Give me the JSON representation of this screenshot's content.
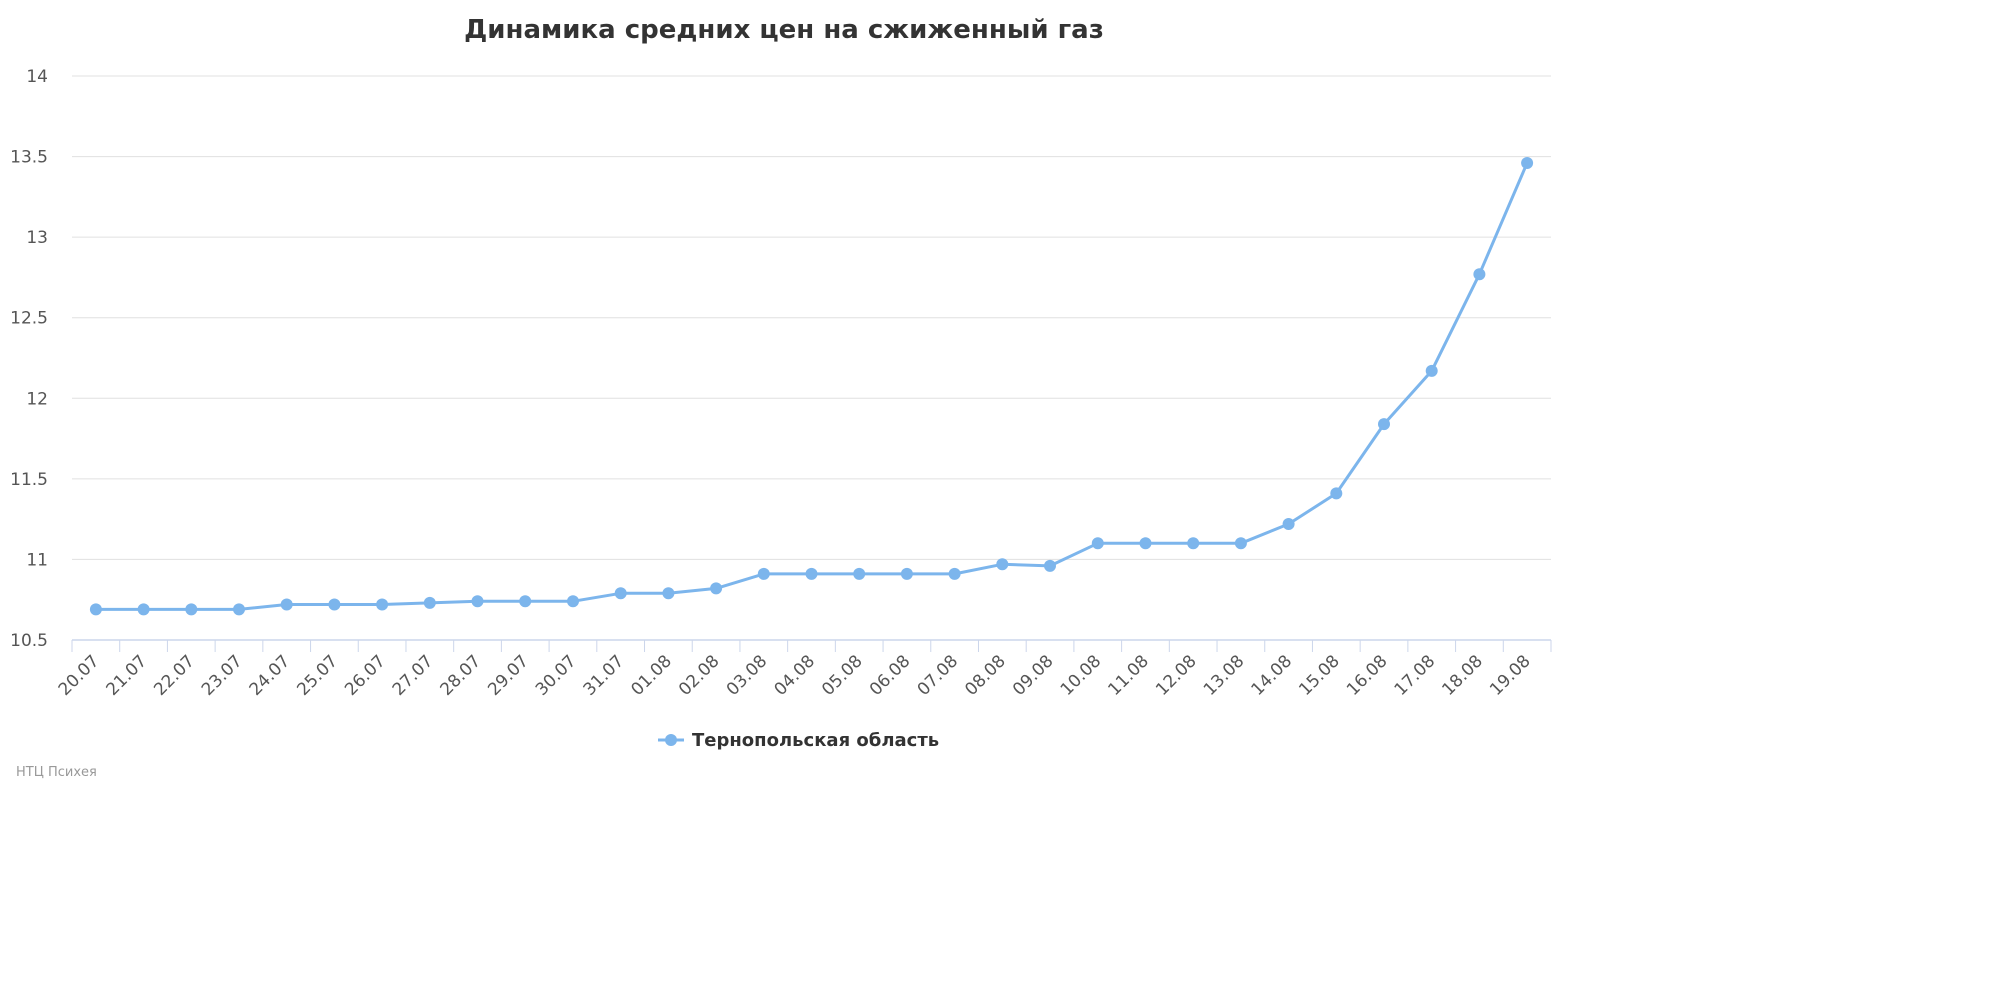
{
  "chart_data": {
    "type": "line",
    "title": "Динамика средних цен на сжиженный газ",
    "xlabel": "",
    "ylabel": "",
    "ylim": [
      10.5,
      14
    ],
    "y_ticks": [
      "10.5",
      "11",
      "11.5",
      "12",
      "12.5",
      "13",
      "13.5",
      "14"
    ],
    "grid": true,
    "legend": "bottom-center",
    "categories": [
      "20.07",
      "21.07",
      "22.07",
      "23.07",
      "24.07",
      "25.07",
      "26.07",
      "27.07",
      "28.07",
      "29.07",
      "30.07",
      "31.07",
      "01.08",
      "02.08",
      "03.08",
      "04.08",
      "05.08",
      "06.08",
      "07.08",
      "08.08",
      "09.08",
      "10.08",
      "11.08",
      "12.08",
      "13.08",
      "14.08",
      "15.08",
      "16.08",
      "17.08",
      "18.08",
      "19.08"
    ],
    "series": [
      {
        "name": "Тернопольская область",
        "color": "#7cb5ec",
        "values": [
          10.69,
          10.69,
          10.69,
          10.69,
          10.72,
          10.72,
          10.72,
          10.73,
          10.74,
          10.74,
          10.74,
          10.79,
          10.79,
          10.82,
          10.91,
          10.91,
          10.91,
          10.91,
          10.91,
          10.97,
          10.96,
          11.1,
          11.1,
          11.1,
          11.1,
          11.22,
          11.41,
          11.84,
          12.17,
          12.77,
          13.46
        ]
      }
    ]
  },
  "credit": "НТЦ Психея"
}
